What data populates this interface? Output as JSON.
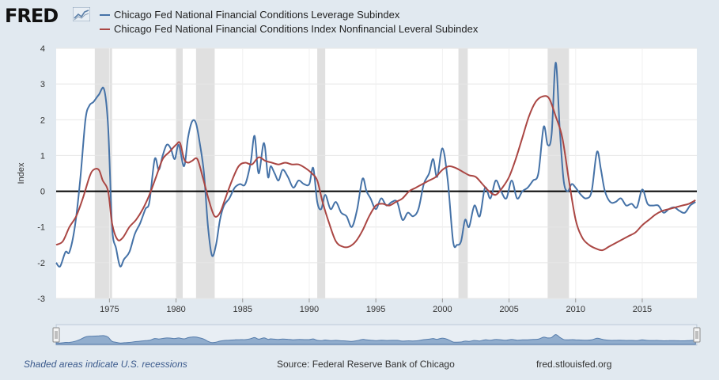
{
  "brand": {
    "name": "FRED"
  },
  "footer": {
    "recession_note": "Shaded areas indicate U.S. recessions",
    "source": "Source: Federal Reserve Bank of Chicago",
    "url": "fred.stlouisfed.org"
  },
  "chart_data": {
    "type": "line",
    "title": "",
    "xlabel": "",
    "ylabel": "Index",
    "xlim": [
      1971,
      2019.1
    ],
    "ylim": [
      -3,
      4
    ],
    "x_ticks": [
      1975,
      1980,
      1985,
      1990,
      1995,
      2000,
      2005,
      2010,
      2015
    ],
    "y_ticks": [
      -3,
      -2,
      -1,
      0,
      1,
      2,
      3,
      4
    ],
    "grid": true,
    "legend_position": "top-left",
    "recessions": [
      [
        1973.9,
        1975.2
      ],
      [
        1980.0,
        1980.5
      ],
      [
        1981.5,
        1982.9
      ],
      [
        1990.6,
        1991.2
      ],
      [
        2001.2,
        2001.9
      ],
      [
        2007.9,
        2009.5
      ]
    ],
    "series": [
      {
        "name": "Chicago Fed National Financial Conditions Leverage Subindex",
        "color": "#4572a7",
        "x": [
          1971.0,
          1971.3,
          1971.7,
          1972.0,
          1972.4,
          1972.8,
          1973.2,
          1973.5,
          1973.8,
          1974.2,
          1974.6,
          1974.9,
          1975.2,
          1975.5,
          1975.8,
          1976.1,
          1976.5,
          1976.9,
          1977.3,
          1977.7,
          1978.0,
          1978.4,
          1978.7,
          1979.0,
          1979.3,
          1979.6,
          1979.9,
          1980.2,
          1980.6,
          1980.9,
          1981.2,
          1981.5,
          1981.8,
          1982.1,
          1982.4,
          1982.7,
          1983.0,
          1983.3,
          1983.6,
          1984.0,
          1984.4,
          1984.8,
          1985.2,
          1985.6,
          1985.9,
          1986.2,
          1986.6,
          1986.9,
          1987.1,
          1987.4,
          1987.7,
          1988.0,
          1988.4,
          1988.8,
          1989.2,
          1989.6,
          1990.0,
          1990.3,
          1990.6,
          1990.9,
          1991.2,
          1991.6,
          1992.0,
          1992.4,
          1992.8,
          1993.2,
          1993.6,
          1994.0,
          1994.3,
          1994.6,
          1995.0,
          1995.4,
          1995.8,
          1996.2,
          1996.6,
          1997.0,
          1997.4,
          1997.8,
          1998.2,
          1998.6,
          1999.0,
          1999.3,
          1999.6,
          2000.0,
          2000.4,
          2000.8,
          2001.1,
          2001.4,
          2001.7,
          2002.0,
          2002.4,
          2002.8,
          2003.2,
          2003.6,
          2004.0,
          2004.4,
          2004.8,
          2005.2,
          2005.6,
          2006.0,
          2006.4,
          2006.8,
          2007.2,
          2007.6,
          2007.9,
          2008.2,
          2008.5,
          2008.8,
          2009.1,
          2009.4,
          2009.7,
          2010.0,
          2010.4,
          2010.8,
          2011.2,
          2011.6,
          2011.9,
          2012.2,
          2012.6,
          2013.0,
          2013.4,
          2013.8,
          2014.2,
          2014.6,
          2015.0,
          2015.4,
          2015.8,
          2016.2,
          2016.6,
          2017.0,
          2017.4,
          2017.8,
          2018.2,
          2018.6,
          2019.0
        ],
        "values": [
          -2.0,
          -2.1,
          -1.7,
          -1.7,
          -1.0,
          0.3,
          2.0,
          2.4,
          2.5,
          2.7,
          2.85,
          1.8,
          -1.0,
          -1.6,
          -2.1,
          -1.9,
          -1.7,
          -1.2,
          -0.9,
          -0.5,
          -0.3,
          0.9,
          0.6,
          1.0,
          1.3,
          1.2,
          0.9,
          1.3,
          0.7,
          1.5,
          1.95,
          1.9,
          1.3,
          0.5,
          -1.0,
          -1.8,
          -1.5,
          -0.8,
          -0.4,
          -0.2,
          0.1,
          0.2,
          0.2,
          0.8,
          1.55,
          0.5,
          1.35,
          0.4,
          0.7,
          0.5,
          0.3,
          0.6,
          0.4,
          0.1,
          0.3,
          0.2,
          0.2,
          0.65,
          -0.3,
          -0.5,
          -0.1,
          -0.5,
          -0.3,
          -0.6,
          -0.7,
          -1.0,
          -0.5,
          0.35,
          0.0,
          -0.2,
          -0.5,
          -0.2,
          -0.4,
          -0.3,
          -0.3,
          -0.8,
          -0.6,
          -0.7,
          -0.5,
          0.2,
          0.5,
          0.9,
          0.4,
          1.2,
          0.3,
          -1.4,
          -1.5,
          -1.4,
          -0.8,
          -1.0,
          -0.4,
          -0.7,
          0.1,
          -0.2,
          0.3,
          0.0,
          -0.2,
          0.3,
          -0.2,
          0.0,
          0.1,
          0.3,
          0.5,
          1.8,
          1.3,
          1.6,
          3.6,
          1.8,
          0.3,
          0.0,
          0.2,
          0.1,
          -0.1,
          -0.2,
          0.0,
          1.1,
          0.6,
          0.0,
          -0.3,
          -0.3,
          -0.2,
          -0.4,
          -0.35,
          -0.45,
          0.05,
          -0.35,
          -0.4,
          -0.4,
          -0.6,
          -0.5,
          -0.45,
          -0.55,
          -0.6,
          -0.4,
          -0.3
        ]
      },
      {
        "name": "Chicago Fed National Financial Conditions Index Nonfinancial Leveral Subindex",
        "color": "#aa4643",
        "x": [
          1971.0,
          1971.5,
          1972.0,
          1972.5,
          1973.0,
          1973.5,
          1973.8,
          1974.2,
          1974.5,
          1974.9,
          1975.2,
          1975.6,
          1976.0,
          1976.5,
          1977.0,
          1977.5,
          1978.0,
          1978.5,
          1979.0,
          1979.5,
          1980.0,
          1980.3,
          1980.6,
          1980.9,
          1981.2,
          1981.6,
          1982.0,
          1982.5,
          1982.9,
          1983.3,
          1983.7,
          1984.2,
          1984.7,
          1985.2,
          1985.7,
          1986.2,
          1986.7,
          1987.2,
          1987.7,
          1988.2,
          1988.7,
          1989.2,
          1989.7,
          1990.2,
          1990.6,
          1991.0,
          1991.5,
          1992.0,
          1992.5,
          1993.0,
          1993.5,
          1994.0,
          1994.5,
          1995.0,
          1995.5,
          1996.0,
          1996.5,
          1997.0,
          1997.5,
          1998.0,
          1998.5,
          1999.0,
          1999.5,
          2000.0,
          2000.5,
          2001.0,
          2001.5,
          2002.0,
          2002.5,
          2003.0,
          2003.5,
          2004.0,
          2004.5,
          2005.0,
          2005.5,
          2006.0,
          2006.5,
          2007.0,
          2007.5,
          2008.0,
          2008.5,
          2009.0,
          2009.5,
          2010.0,
          2010.5,
          2011.0,
          2011.5,
          2012.0,
          2012.5,
          2013.0,
          2013.5,
          2014.0,
          2014.5,
          2015.0,
          2015.5,
          2016.0,
          2016.5,
          2017.0,
          2017.5,
          2018.0,
          2018.5,
          2019.0
        ],
        "values": [
          -1.5,
          -1.4,
          -1.0,
          -0.7,
          -0.2,
          0.4,
          0.6,
          0.6,
          0.3,
          0.0,
          -0.9,
          -1.35,
          -1.3,
          -1.0,
          -0.8,
          -0.5,
          -0.1,
          0.4,
          0.9,
          1.1,
          1.3,
          1.35,
          0.9,
          0.8,
          0.85,
          0.9,
          0.4,
          -0.3,
          -0.7,
          -0.6,
          -0.2,
          0.3,
          0.7,
          0.8,
          0.75,
          0.95,
          0.85,
          0.8,
          0.75,
          0.8,
          0.75,
          0.75,
          0.65,
          0.5,
          0.3,
          -0.3,
          -0.9,
          -1.4,
          -1.55,
          -1.55,
          -1.4,
          -1.1,
          -0.7,
          -0.4,
          -0.35,
          -0.4,
          -0.3,
          -0.2,
          0.0,
          0.1,
          0.2,
          0.3,
          0.4,
          0.6,
          0.7,
          0.65,
          0.55,
          0.45,
          0.4,
          0.2,
          0.0,
          -0.1,
          0.1,
          0.4,
          0.9,
          1.5,
          2.1,
          2.5,
          2.65,
          2.6,
          2.1,
          1.5,
          0.3,
          -0.8,
          -1.3,
          -1.5,
          -1.6,
          -1.65,
          -1.55,
          -1.45,
          -1.35,
          -1.25,
          -1.15,
          -0.95,
          -0.8,
          -0.65,
          -0.55,
          -0.5,
          -0.45,
          -0.4,
          -0.35,
          -0.25
        ]
      }
    ]
  }
}
